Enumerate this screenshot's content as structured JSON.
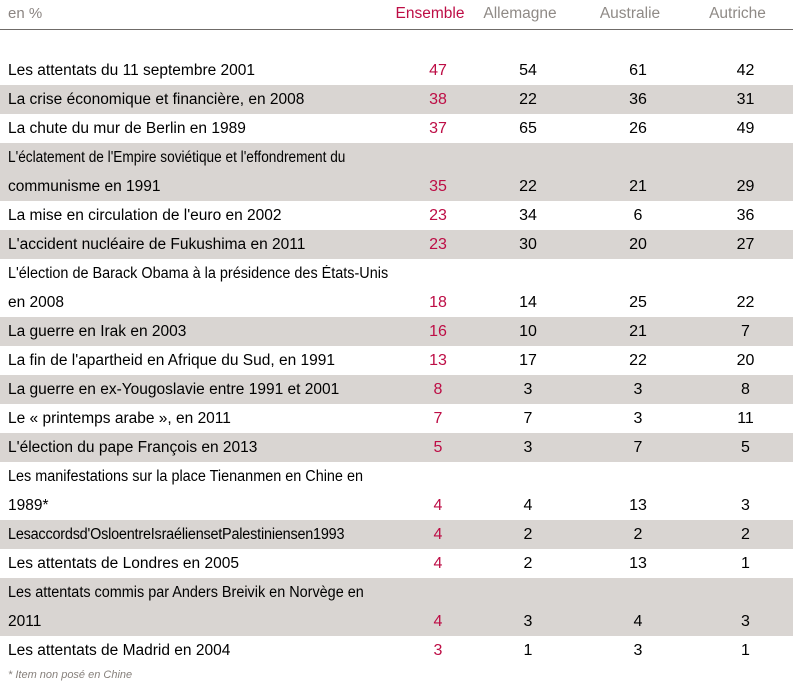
{
  "colors": {
    "accent": "#bd0d45",
    "row_alt_background": "#d9d5d2",
    "header_text": "#8f8a86",
    "divider": "#6f6b68"
  },
  "chart_data": {
    "type": "table",
    "unit": "en %",
    "columns": [
      "Ensemble",
      "Allemagne",
      "Australie",
      "Autriche"
    ],
    "rows": [
      {
        "label": "Les attentats du 11 septembre 2001",
        "label_lines": [
          "Les attentats du 11 septembre 2001"
        ],
        "values": [
          47,
          54,
          61,
          42
        ]
      },
      {
        "label": "La crise économique et financière, en 2008",
        "label_lines": [
          "La crise économique et financière, en 2008"
        ],
        "values": [
          38,
          22,
          36,
          31
        ]
      },
      {
        "label": "La chute du mur de Berlin en 1989",
        "label_lines": [
          "La chute du mur de Berlin en 1989"
        ],
        "values": [
          37,
          65,
          26,
          49
        ]
      },
      {
        "label": "L'éclatement de l'Empire soviétique et l'effondrement du communisme en 1991",
        "label_lines": [
          "L'éclatement de l'Empire soviétique et l'effondrement du",
          "communisme en 1991"
        ],
        "values": [
          35,
          22,
          21,
          29
        ]
      },
      {
        "label": "La mise en circulation de l'euro en 2002",
        "label_lines": [
          "La mise en circulation de l'euro en 2002"
        ],
        "values": [
          23,
          34,
          6,
          36
        ]
      },
      {
        "label": "L'accident nucléaire de Fukushima en 2011",
        "label_lines": [
          "L'accident nucléaire de Fukushima en 2011"
        ],
        "values": [
          23,
          30,
          20,
          27
        ]
      },
      {
        "label": "L'élection de Barack Obama à la présidence des États-Unis en 2008",
        "label_lines": [
          "L'élection de Barack Obama à la présidence des États-Unis",
          "en 2008"
        ],
        "values": [
          18,
          14,
          25,
          22
        ]
      },
      {
        "label": "La guerre en Irak en 2003",
        "label_lines": [
          "La guerre en Irak en 2003"
        ],
        "values": [
          16,
          10,
          21,
          7
        ]
      },
      {
        "label": "La fin de l'apartheid en Afrique du Sud, en 1991",
        "label_lines": [
          "La fin de l'apartheid en Afrique du Sud, en 1991"
        ],
        "values": [
          13,
          17,
          22,
          20
        ]
      },
      {
        "label": "La guerre en ex-Yougoslavie entre 1991 et 2001",
        "label_lines": [
          "La guerre en ex-Yougoslavie entre 1991 et 2001"
        ],
        "values": [
          8,
          3,
          3,
          8
        ]
      },
      {
        "label": "Le « printemps arabe », en 2011",
        "label_lines": [
          "Le « printemps arabe », en 2011"
        ],
        "values": [
          7,
          7,
          3,
          11
        ]
      },
      {
        "label": "L'élection du pape François en 2013",
        "label_lines": [
          "L'élection du pape François en 2013"
        ],
        "values": [
          5,
          3,
          7,
          5
        ]
      },
      {
        "label": "Les manifestations sur la place Tienanmen en Chine en 1989*",
        "label_lines": [
          "Les manifestations sur la place Tienanmen en Chine en",
          "1989*"
        ],
        "values": [
          4,
          4,
          13,
          3
        ]
      },
      {
        "label": "Les accords d'Oslo entre Israéliens et Palestiniens en 1993",
        "label_lines": [
          "Les accords d'Oslo entre Israéliens et Palestiniens en 1993"
        ],
        "values": [
          4,
          2,
          2,
          2
        ]
      },
      {
        "label": "Les attentats de Londres en 2005",
        "label_lines": [
          "Les attentats de Londres en 2005"
        ],
        "values": [
          4,
          2,
          13,
          1
        ]
      },
      {
        "label": "Les attentats commis par Anders Breivik en Norvège en 2011",
        "label_lines": [
          "Les attentats commis par Anders Breivik en Norvège en",
          "2011"
        ],
        "values": [
          4,
          3,
          4,
          3
        ]
      },
      {
        "label": "Les attentats de Madrid en 2004",
        "label_lines": [
          "Les attentats de Madrid en 2004"
        ],
        "values": [
          3,
          1,
          3,
          1
        ]
      }
    ],
    "footnote": "* Item non posé en Chine"
  }
}
